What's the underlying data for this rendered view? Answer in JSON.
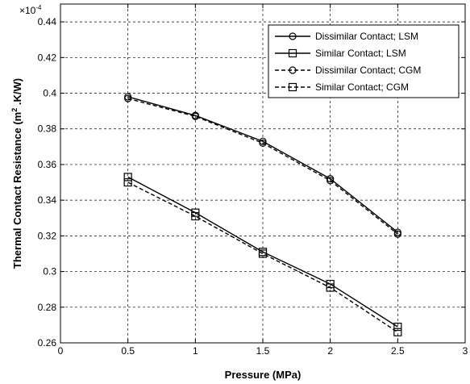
{
  "chart_data": {
    "type": "line",
    "title": "",
    "xlabel": "Pressure (MPa)",
    "ylabel_main": "Thermal Contact Resistance (m",
    "ylabel_sup": "2",
    "ylabel_tail": " .K/W)",
    "y_exponent_base": "×10",
    "y_exponent_power": "-4",
    "xlim": [
      0,
      3
    ],
    "ylim": [
      0.26,
      0.45
    ],
    "x_ticks": [
      0,
      0.5,
      1,
      1.5,
      2,
      2.5,
      3
    ],
    "x_tick_labels": [
      "0",
      "0.5",
      "1",
      "1.5",
      "2",
      "2.5",
      "3"
    ],
    "y_ticks": [
      0.26,
      0.28,
      0.3,
      0.32,
      0.34,
      0.36,
      0.38,
      0.4,
      0.42,
      0.44
    ],
    "y_tick_labels": [
      "0.26",
      "0.28",
      "0.3",
      "0.32",
      "0.34",
      "0.36",
      "0.38",
      "0.4",
      "0.42",
      "0.44"
    ],
    "grid": true,
    "legend_position": "top-right",
    "x": [
      0.5,
      1.0,
      1.5,
      2.0,
      2.5
    ],
    "series": [
      {
        "name": "Dissimilar Contact; LSM",
        "values": [
          0.398,
          0.3875,
          0.373,
          0.352,
          0.322
        ],
        "marker": "circle",
        "linestyle": "solid"
      },
      {
        "name": "Similar Contact; LSM",
        "values": [
          0.353,
          0.333,
          0.311,
          0.293,
          0.269
        ],
        "marker": "square",
        "linestyle": "solid"
      },
      {
        "name": "Dissimilar Contact; CGM",
        "values": [
          0.397,
          0.387,
          0.372,
          0.351,
          0.321
        ],
        "marker": "circle",
        "linestyle": "dashed"
      },
      {
        "name": "Similar Contact; CGM",
        "values": [
          0.35,
          0.331,
          0.31,
          0.291,
          0.266
        ],
        "marker": "square",
        "linestyle": "dashed"
      }
    ]
  }
}
